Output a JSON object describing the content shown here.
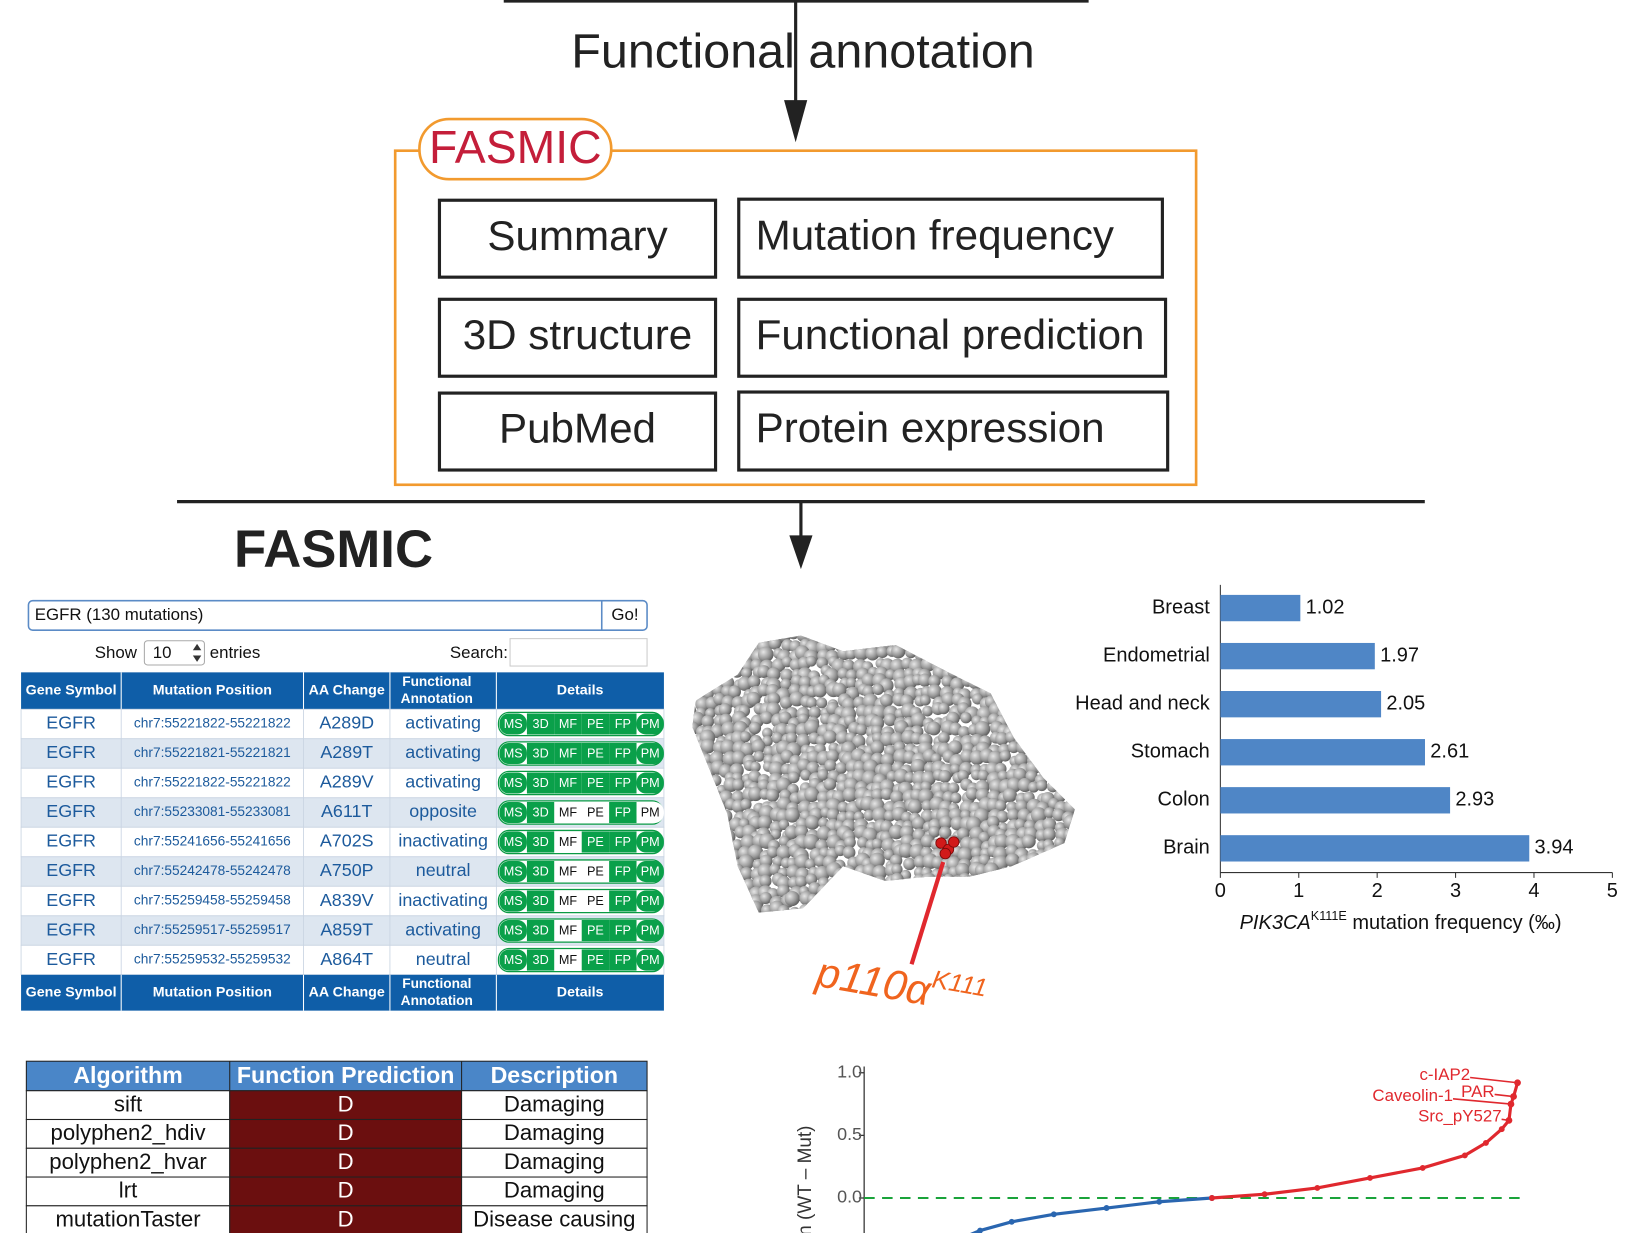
{
  "header": {
    "title": "Functional annotation"
  },
  "fasmic_box": {
    "title": "FASMIC",
    "modules": [
      "Summary",
      "Mutation frequency",
      "3D structure",
      "Functional prediction",
      "PubMed",
      "Protein expression"
    ]
  },
  "web": {
    "title": "FASMIC",
    "search_value": "EGFR (130 mutations)",
    "button": "Go!",
    "show": "Show",
    "entries_count": "10",
    "entries": "entries",
    "search_label": "Search:",
    "table": {
      "headers": [
        "Gene Symbol",
        "Mutation Position",
        "AA Change",
        [
          "Functional",
          "Annotation"
        ],
        "Details"
      ],
      "badge_codes": [
        "MS",
        "3D",
        "MF",
        "PE",
        "FP",
        "PM"
      ],
      "rows": [
        [
          "EGFR",
          "chr7:55221822-55221822",
          "A289D",
          "activating"
        ],
        [
          "EGFR",
          "chr7:55221821-55221821",
          "A289T",
          "activating"
        ],
        [
          "EGFR",
          "chr7:55221822-55221822",
          "A289V",
          "activating"
        ],
        [
          "EGFR",
          "chr7:55233081-55233081",
          "A611T",
          "opposite"
        ],
        [
          "EGFR",
          "chr7:55241656-55241656",
          "A702S",
          "inactivating"
        ],
        [
          "EGFR",
          "chr7:55242478-55242478",
          "A750P",
          "neutral"
        ],
        [
          "EGFR",
          "chr7:55259458-55259458",
          "A839V",
          "inactivating"
        ],
        [
          "EGFR",
          "chr7:55259517-55259517",
          "A859T",
          "activating"
        ],
        [
          "EGFR",
          "chr7:55259532-55259532",
          "A864T",
          "neutral"
        ]
      ],
      "badges": [
        [
          true,
          true,
          true,
          true,
          true,
          true
        ],
        [
          true,
          true,
          true,
          true,
          true,
          true
        ],
        [
          true,
          true,
          true,
          true,
          true,
          true
        ],
        [
          true,
          true,
          false,
          false,
          true,
          false
        ],
        [
          true,
          true,
          false,
          true,
          true,
          true
        ],
        [
          true,
          true,
          false,
          false,
          true,
          true
        ],
        [
          true,
          true,
          false,
          false,
          true,
          true
        ],
        [
          true,
          true,
          false,
          true,
          true,
          true
        ],
        [
          true,
          true,
          false,
          true,
          true,
          true
        ]
      ]
    }
  },
  "structure": {
    "label": "p110α",
    "residue": "K111"
  },
  "prediction_table": {
    "headers": [
      "Algorithm",
      "Function Prediction",
      "Description"
    ],
    "rows": [
      [
        "sift",
        "D",
        "Damaging"
      ],
      [
        "polyphen2_hdiv",
        "D",
        "Damaging"
      ],
      [
        "polyphen2_hvar",
        "D",
        "Damaging"
      ],
      [
        "lrt",
        "D",
        "Damaging"
      ],
      [
        "mutationTaster",
        "D",
        "Disease causing"
      ]
    ]
  },
  "chart_data": [
    {
      "type": "hbar",
      "categories": [
        "Breast",
        "Endometrial",
        "Head and neck",
        "Stomach",
        "Colon",
        "Brain"
      ],
      "values": [
        1.02,
        1.97,
        2.05,
        2.61,
        2.93,
        3.94
      ],
      "color": "#4f86c6",
      "xlim": [
        0,
        5
      ],
      "xticks": [
        0,
        1,
        2,
        3,
        4,
        5
      ],
      "xlabel": {
        "gene": "PIK3CA",
        "mutation": "K111E",
        "text": " mutation frequency (‰)"
      }
    },
    {
      "type": "line",
      "ylabel": "n (WT – Mut)",
      "xlim": [
        0,
        1
      ],
      "ylim": [
        -0.33,
        1.05
      ],
      "yticks": [
        {
          "value": 1,
          "label": "1.0"
        },
        {
          "value": 0.5,
          "label": "0.5"
        },
        {
          "value": 0,
          "label": "0.0"
        }
      ],
      "reference_line": 0,
      "reference_color": "#1aa33a",
      "series": [
        {
          "color": "#2a66b0",
          "x": [
            0.144,
            0.176,
            0.224,
            0.288,
            0.368,
            0.448,
            0.528
          ],
          "values": [
            -0.33,
            -0.26,
            -0.19,
            -0.13,
            -0.08,
            -0.03,
            0
          ]
        },
        {
          "color": "#e0282e",
          "x": [
            0.528,
            0.608,
            0.688,
            0.768,
            0.848,
            0.912,
            0.944,
            0.968,
            0.979,
            0.982,
            0.986,
            0.992
          ],
          "values": [
            0,
            0.03,
            0.08,
            0.16,
            0.24,
            0.34,
            0.44,
            0.55,
            0.62,
            0.75,
            0.81,
            0.92
          ]
        }
      ],
      "annotations": [
        {
          "text": "c-IAP2",
          "x": 0.992,
          "y": 0.92
        },
        {
          "text": "PAR",
          "x": 0.986,
          "y": 0.81
        },
        {
          "text": "Caveolin-1",
          "x": 0.982,
          "y": 0.75
        },
        {
          "text": "Src_pY527",
          "x": 0.979,
          "y": 0.62
        }
      ]
    }
  ]
}
